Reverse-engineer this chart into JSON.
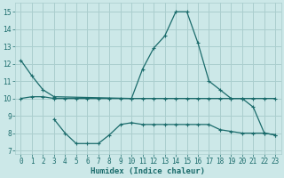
{
  "xlabel": "Humidex (Indice chaleur)",
  "bg_color": "#cce8e8",
  "grid_color": "#aacece",
  "line_color": "#1a6b6b",
  "xlim": [
    -0.5,
    23.5
  ],
  "ylim": [
    6.8,
    15.5
  ],
  "yticks": [
    7,
    8,
    9,
    10,
    11,
    12,
    13,
    14,
    15
  ],
  "xticks": [
    0,
    1,
    2,
    3,
    4,
    5,
    6,
    7,
    8,
    9,
    10,
    11,
    12,
    13,
    14,
    15,
    16,
    17,
    18,
    19,
    20,
    21,
    22,
    23
  ],
  "curve1_x": [
    0,
    1,
    2,
    3,
    10,
    11,
    12,
    13,
    14,
    15,
    16,
    17,
    18,
    19,
    20,
    21,
    22,
    23
  ],
  "curve1_y": [
    12.2,
    11.3,
    10.5,
    10.1,
    10.0,
    11.7,
    12.9,
    13.6,
    15.0,
    15.0,
    13.2,
    11.0,
    10.5,
    10.0,
    10.0,
    9.5,
    8.0,
    7.9
  ],
  "curve2_x": [
    0,
    1,
    2,
    3,
    4,
    5,
    6,
    7,
    8,
    9,
    10,
    11,
    12,
    13,
    14,
    15,
    16,
    17,
    18,
    19,
    20,
    21,
    22,
    23
  ],
  "curve2_y": [
    10.0,
    10.1,
    10.1,
    10.0,
    10.0,
    10.0,
    10.0,
    10.0,
    10.0,
    10.0,
    10.0,
    10.0,
    10.0,
    10.0,
    10.0,
    10.0,
    10.0,
    10.0,
    10.0,
    10.0,
    10.0,
    10.0,
    10.0,
    10.0
  ],
  "curve3_x": [
    3,
    4,
    5,
    6,
    7,
    8,
    9,
    10,
    11,
    12,
    13,
    14,
    15,
    16,
    17,
    18,
    19,
    20,
    21,
    22,
    23
  ],
  "curve3_y": [
    8.8,
    8.0,
    7.4,
    7.4,
    7.4,
    7.9,
    8.5,
    8.6,
    8.5,
    8.5,
    8.5,
    8.5,
    8.5,
    8.5,
    8.5,
    8.2,
    8.1,
    8.0,
    8.0,
    8.0,
    7.9
  ],
  "tick_fontsize": 5.5,
  "xlabel_fontsize": 6.5
}
